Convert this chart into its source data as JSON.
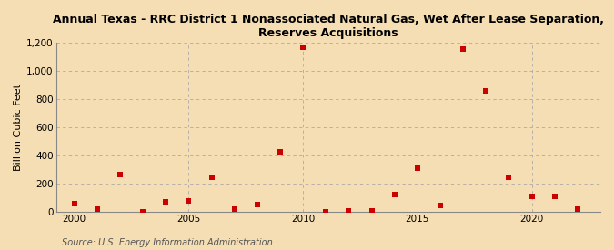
{
  "title_line1": "Annual Texas - RRC District 1 Nonassociated Natural Gas, Wet After Lease Separation,",
  "title_line2": "Reserves Acquisitions",
  "ylabel": "Billion Cubic Feet",
  "source": "Source: U.S. Energy Information Administration",
  "background_color": "#f5deb3",
  "plot_bg_color": "#f5deb3",
  "marker_color": "#cc0000",
  "years": [
    2000,
    2001,
    2002,
    2003,
    2004,
    2005,
    2006,
    2007,
    2008,
    2009,
    2010,
    2011,
    2012,
    2013,
    2014,
    2015,
    2016,
    2017,
    2018,
    2019,
    2020,
    2021,
    2022
  ],
  "values": [
    60,
    20,
    270,
    5,
    75,
    80,
    250,
    20,
    55,
    430,
    1165,
    5,
    10,
    10,
    125,
    310,
    50,
    1155,
    860,
    245,
    115,
    110,
    20
  ],
  "ylim": [
    0,
    1200
  ],
  "yticks": [
    0,
    200,
    400,
    600,
    800,
    1000,
    1200
  ],
  "ytick_labels": [
    "0",
    "200",
    "400",
    "600",
    "800",
    "1,000",
    "1,200"
  ],
  "xlim": [
    1999.2,
    2023
  ],
  "xticks": [
    2000,
    2005,
    2010,
    2015,
    2020
  ],
  "h_grid_color": "#aaaaaa",
  "v_grid_color": "#aaaaaa",
  "title_fontsize": 9,
  "axis_fontsize": 7.5,
  "ylabel_fontsize": 8,
  "source_fontsize": 7,
  "marker_size": 5
}
